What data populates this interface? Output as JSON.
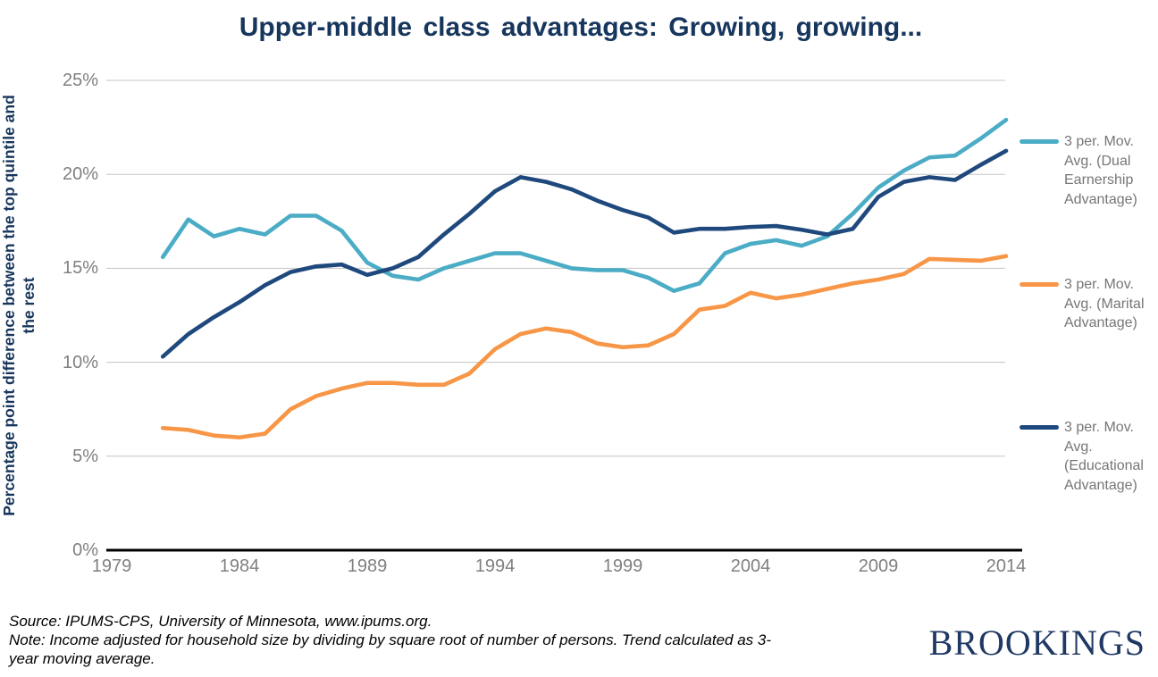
{
  "title": "Upper-middle class advantages: Growing, growing...",
  "y_axis": {
    "line1": "Percentage point difference between the top quintile and",
    "line2": "the rest"
  },
  "footer": {
    "line1": "Source: IPUMS-CPS, University of Minnesota, www.ipums.org.",
    "line2": "Note: Income adjusted for household size by dividing by square root of number of persons. Trend calculated as 3-",
    "line3": "year moving average."
  },
  "logo_text": "BROOKINGS",
  "colors": {
    "title_navy": "#17365D",
    "axis_label_gray": "#808080",
    "legend_text_gray": "#767676",
    "gridline": "#C3C3C3",
    "axis_line": "#000000",
    "dual_earnership": "#4BACC6",
    "marital": "#F79646",
    "educational": "#1F497D",
    "logo_navy": "#1F3864"
  },
  "legend": [
    {
      "series": "dual-earnership",
      "color": "#4BACC6",
      "lines": [
        "3 per. Mov.",
        "Avg. (Dual",
        "Earnership",
        "Advantage)"
      ]
    },
    {
      "series": "marital",
      "color": "#F79646",
      "lines": [
        "3 per. Mov.",
        "Avg. (Marital",
        "Advantage)"
      ]
    },
    {
      "series": "educational",
      "color": "#1F497D",
      "lines": [
        "3 per. Mov.",
        "Avg.",
        "(Educational",
        "Advantage)"
      ]
    }
  ],
  "chart_data": {
    "type": "line",
    "title": "Upper-middle class advantages: Growing, growing...",
    "xlabel": "",
    "ylabel": "Percentage point difference between the top quintile and the rest",
    "xlim": [
      1979,
      2014
    ],
    "ylim": [
      0,
      25
    ],
    "grid": true,
    "legend_position": "right",
    "xticks": [
      1979,
      1984,
      1989,
      1994,
      1999,
      2004,
      2009,
      2014
    ],
    "yticks": [
      {
        "value": 0,
        "label": "0%"
      },
      {
        "value": 5,
        "label": "5%"
      },
      {
        "value": 10,
        "label": "10%"
      },
      {
        "value": 15,
        "label": "15%"
      },
      {
        "value": 20,
        "label": "20%"
      },
      {
        "value": 25,
        "label": "25%"
      }
    ],
    "x": [
      1981,
      1982,
      1983,
      1984,
      1985,
      1986,
      1987,
      1988,
      1989,
      1990,
      1991,
      1992,
      1993,
      1994,
      1995,
      1996,
      1997,
      1998,
      1999,
      2000,
      2001,
      2002,
      2003,
      2004,
      2005,
      2006,
      2007,
      2008,
      2009,
      2010,
      2011,
      2012,
      2013,
      2014
    ],
    "series": [
      {
        "name": "3 per. Mov. Avg. (Dual Earnership Advantage)",
        "color": "#4BACC6",
        "values": [
          15.6,
          17.6,
          16.7,
          17.1,
          16.8,
          17.8,
          17.8,
          17.0,
          15.3,
          14.6,
          14.4,
          15.0,
          15.4,
          15.8,
          15.8,
          15.4,
          15.0,
          14.9,
          14.9,
          14.5,
          13.8,
          14.2,
          15.8,
          16.3,
          16.5,
          16.2,
          16.7,
          17.9,
          19.3,
          20.2,
          20.9,
          21.0,
          21.9,
          22.9
        ]
      },
      {
        "name": "3 per. Mov. Avg. (Marital Advantage)",
        "color": "#F79646",
        "values": [
          6.5,
          6.4,
          6.1,
          6.0,
          6.2,
          7.5,
          8.2,
          8.6,
          8.9,
          8.9,
          8.8,
          8.8,
          9.4,
          10.7,
          11.5,
          11.8,
          11.6,
          11.0,
          10.8,
          10.9,
          11.5,
          12.8,
          13.0,
          13.7,
          13.4,
          13.6,
          13.9,
          14.2,
          14.4,
          14.7,
          15.5,
          15.45,
          15.4,
          15.65
        ]
      },
      {
        "name": "3 per. Mov. Avg. (Educational Advantage)",
        "color": "#1F497D",
        "values": [
          10.3,
          11.5,
          12.4,
          13.2,
          14.1,
          14.8,
          15.1,
          15.2,
          14.65,
          15.0,
          15.6,
          16.8,
          17.9,
          19.1,
          19.85,
          19.6,
          19.2,
          18.6,
          18.1,
          17.7,
          16.9,
          17.1,
          17.1,
          17.2,
          17.25,
          17.05,
          16.8,
          17.1,
          18.8,
          19.6,
          19.85,
          19.7,
          20.5,
          21.25
        ]
      }
    ]
  }
}
